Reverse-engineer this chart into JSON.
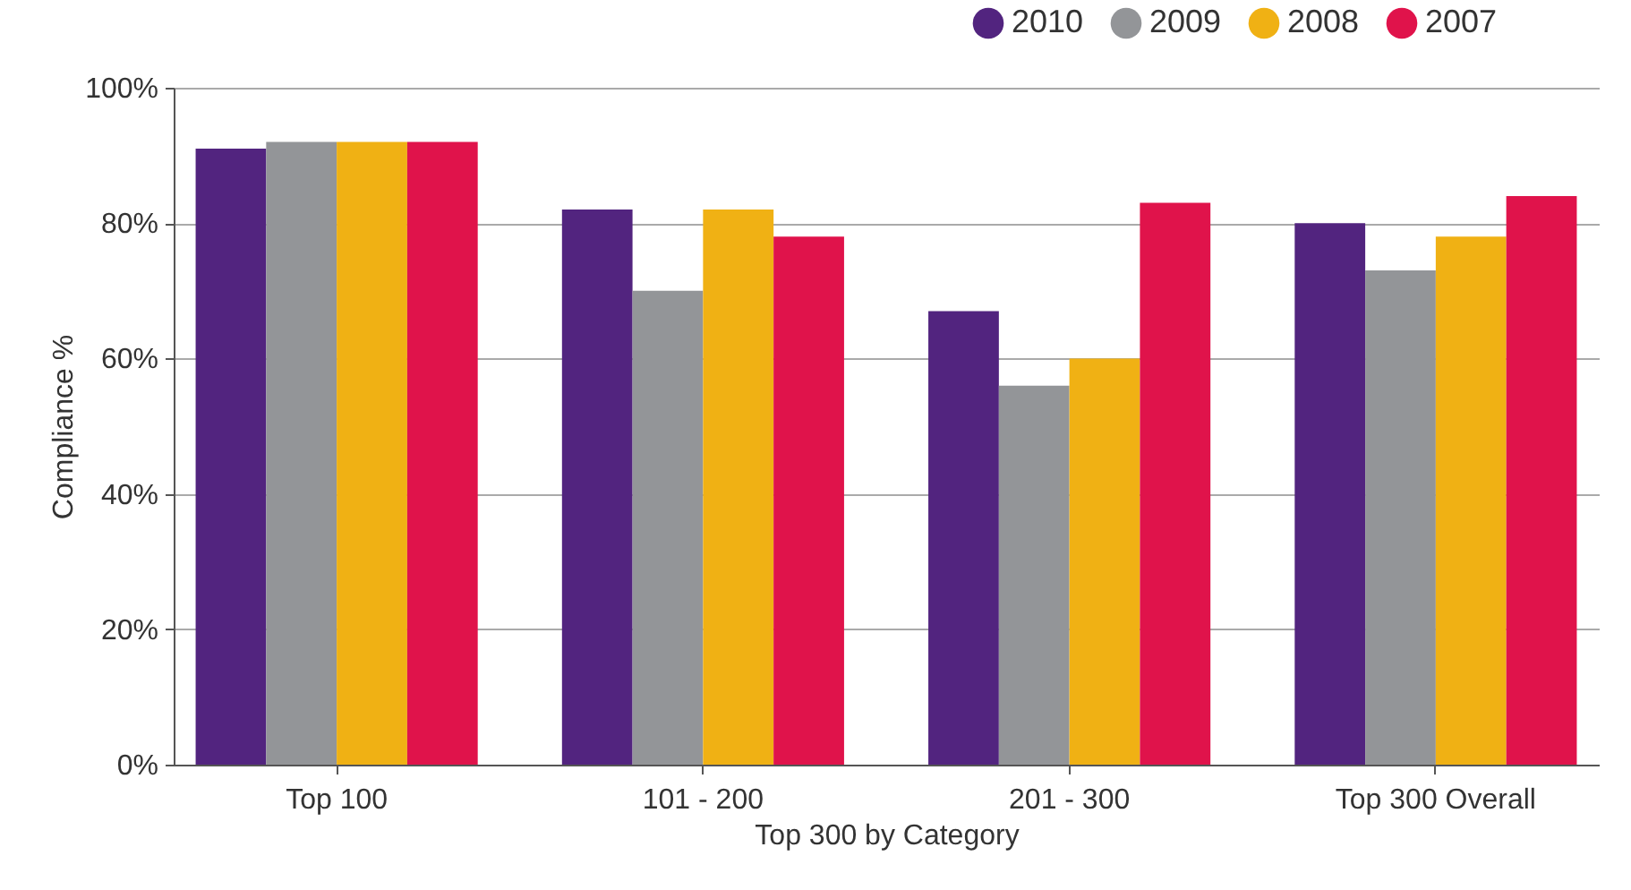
{
  "chart_data": {
    "type": "bar",
    "xlabel": "Top 300 by Category",
    "ylabel": "Compliance %",
    "categories": [
      "Top 100",
      "101 - 200",
      "201 - 300",
      "Top 300 Overall"
    ],
    "series": [
      {
        "name": "2010",
        "color": "#52247f",
        "values": [
          91,
          82,
          67,
          80
        ]
      },
      {
        "name": "2009",
        "color": "#939598",
        "values": [
          92,
          70,
          56,
          73
        ]
      },
      {
        "name": "2008",
        "color": "#f0b114",
        "values": [
          92,
          82,
          60,
          78
        ]
      },
      {
        "name": "2007",
        "color": "#e0134b",
        "values": [
          92,
          78,
          83,
          84
        ]
      }
    ],
    "ylim": [
      0,
      100
    ],
    "yticks": [
      {
        "value": 0,
        "label": "0%"
      },
      {
        "value": 20,
        "label": "20%"
      },
      {
        "value": 40,
        "label": "40%"
      },
      {
        "value": 60,
        "label": "60%"
      },
      {
        "value": 80,
        "label": "80%"
      },
      {
        "value": 100,
        "label": "100%"
      }
    ],
    "grid": "y",
    "legend": "top right"
  }
}
